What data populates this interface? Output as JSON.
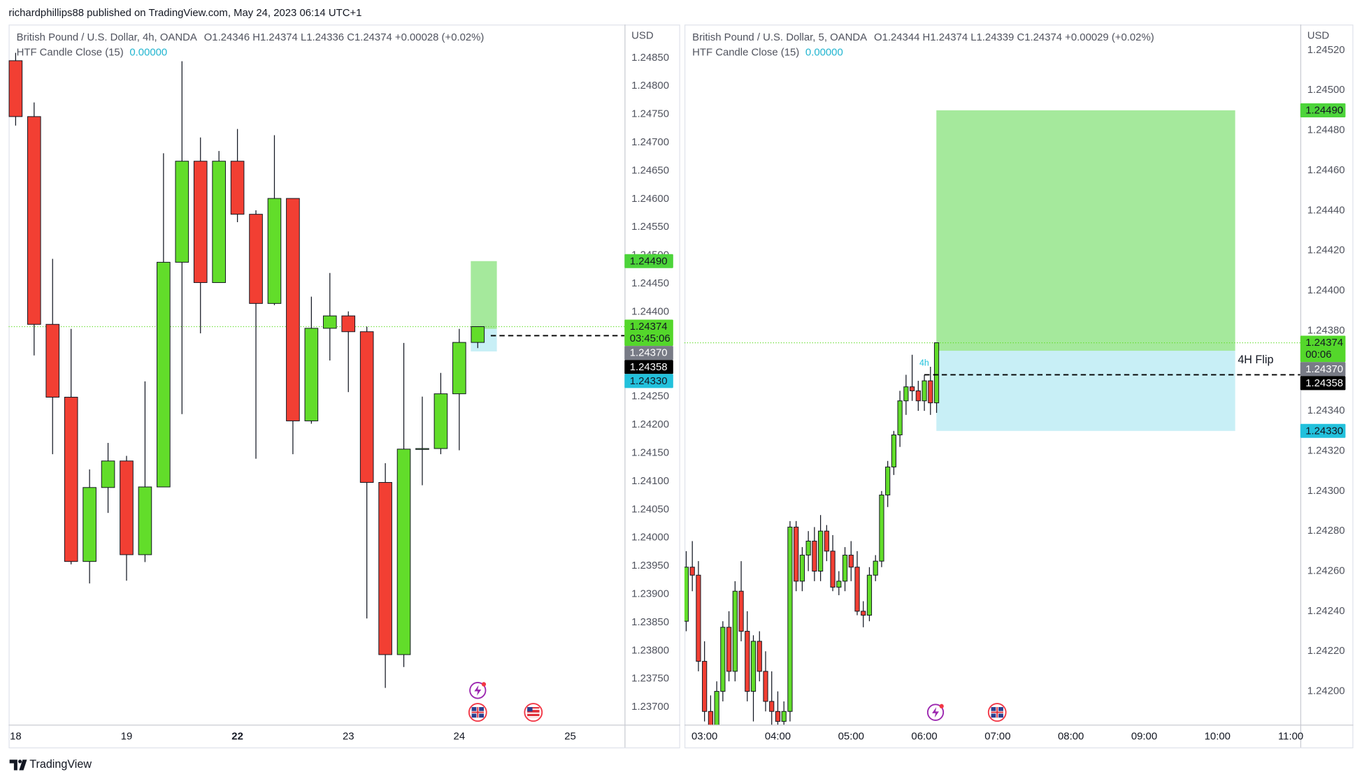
{
  "header": {
    "text": "richardphillips88 published on TradingView.com, May 24, 2023 06:14 UTC+1"
  },
  "footer": {
    "brand": "TradingView"
  },
  "chart_data": [
    {
      "type": "candlestick",
      "symbol": "British Pound / U.S. Dollar, 4h, OANDA",
      "ohlc": "O1.24346 H1.24374 L1.24336 C1.24374 +0.00028 (+0.02%)",
      "indicator": "HTF Candle Close (15)",
      "indicator_value": "0.00000",
      "currency": "USD",
      "categories": [
        "18",
        null,
        null,
        null,
        null,
        null,
        "19",
        null,
        null,
        null,
        null,
        null,
        "22",
        null,
        null,
        null,
        null,
        null,
        "23",
        null,
        null,
        null,
        null,
        null,
        "24",
        null,
        null,
        null,
        null,
        null,
        "25"
      ],
      "open": [
        1.24845,
        1.24746,
        1.24378,
        1.24249,
        1.23958,
        1.24089,
        1.24136,
        1.2397,
        1.2409,
        1.24488,
        1.24667,
        1.24452,
        1.24667,
        1.24573,
        1.24415,
        1.24601,
        1.24207,
        1.24371,
        1.24393,
        1.24365,
        1.24098,
        1.23793,
        1.24157,
        1.24158,
        1.24255,
        1.24346,
        null,
        null,
        null,
        null,
        null
      ],
      "high": [
        1.24859,
        1.24771,
        1.24494,
        1.2437,
        1.24121,
        1.24168,
        1.24145,
        1.24277,
        1.24681,
        1.24844,
        1.24709,
        1.24685,
        1.24724,
        1.2458,
        1.24713,
        1.24601,
        1.24427,
        1.24469,
        1.24401,
        1.24374,
        1.24132,
        1.24345,
        1.2425,
        1.24292,
        1.2437,
        1.24374,
        null,
        null,
        null,
        null,
        null
      ],
      "low": [
        1.2473,
        1.24323,
        1.24148,
        1.23953,
        1.23919,
        1.24044,
        1.23924,
        1.23957,
        1.2409,
        1.24219,
        1.24362,
        1.24452,
        1.24559,
        1.2414,
        1.24412,
        1.24148,
        1.24202,
        1.24314,
        1.24258,
        1.23857,
        1.23734,
        1.23771,
        1.24093,
        1.24148,
        1.24155,
        1.24336,
        null,
        null,
        null,
        null,
        null
      ],
      "close": [
        1.24746,
        1.24378,
        1.24249,
        1.23958,
        1.24089,
        1.24136,
        1.2397,
        1.2409,
        1.24488,
        1.24667,
        1.24452,
        1.24667,
        1.24573,
        1.24415,
        1.24601,
        1.24207,
        1.24371,
        1.24393,
        1.24365,
        1.24098,
        1.23793,
        1.24157,
        1.24158,
        1.24255,
        1.24346,
        1.24374,
        null,
        null,
        null,
        null,
        null
      ],
      "up_color": "#62dd2a",
      "down_color": "#f23f33",
      "ylim": [
        1.23669,
        1.24909
      ],
      "yticks": [
        {
          "value": 1.237,
          "label": "1.23700"
        },
        {
          "value": 1.2375,
          "label": "1.23750"
        },
        {
          "value": 1.238,
          "label": "1.23800"
        },
        {
          "value": 1.2385,
          "label": "1.23850"
        },
        {
          "value": 1.239,
          "label": "1.23900"
        },
        {
          "value": 1.2395,
          "label": "1.23950"
        },
        {
          "value": 1.24,
          "label": "1.24000"
        },
        {
          "value": 1.2405,
          "label": "1.24050"
        },
        {
          "value": 1.241,
          "label": "1.24100"
        },
        {
          "value": 1.2415,
          "label": "1.24150"
        },
        {
          "value": 1.242,
          "label": "1.24200"
        },
        {
          "value": 1.2425,
          "label": "1.24250"
        },
        {
          "value": 1.243,
          "label": "1.24300"
        },
        {
          "value": 1.2435,
          "label": "1.24350"
        },
        {
          "value": 1.244,
          "label": "1.24400"
        },
        {
          "value": 1.2445,
          "label": "1.24450"
        },
        {
          "value": 1.245,
          "label": "1.24500"
        },
        {
          "value": 1.2455,
          "label": "1.24550"
        },
        {
          "value": 1.246,
          "label": "1.24600"
        },
        {
          "value": 1.2465,
          "label": "1.24650"
        },
        {
          "value": 1.247,
          "label": "1.24700"
        },
        {
          "value": 1.2475,
          "label": "1.24750"
        },
        {
          "value": 1.248,
          "label": "1.24800"
        },
        {
          "value": 1.2485,
          "label": "1.24850"
        }
      ],
      "grid": false,
      "last_price": 1.24374,
      "htf_close": 1.24358,
      "position": {
        "target": 1.2449,
        "entry": 1.2437,
        "stop": 1.2433
      },
      "badges": [
        {
          "value": 1.2449,
          "label": "1.24490",
          "color": "#4cd43a"
        },
        {
          "value": 1.24374,
          "label": "1.24374",
          "color": "#54d72b",
          "sub": "03:45:06"
        },
        {
          "value": 1.2437,
          "label": "1.24370",
          "color": "#787b86"
        },
        {
          "value": 1.24358,
          "label": "1.24358",
          "color": "#000000"
        },
        {
          "value": 1.2433,
          "label": "1.24330",
          "color": "#22c1dc"
        }
      ]
    },
    {
      "type": "candlestick",
      "symbol": "British Pound / U.S. Dollar, 5, OANDA",
      "ohlc": "O1.24344 H1.24374 L1.24339 C1.24374 +0.00029 (+0.02%)",
      "indicator": "HTF Candle Close (15)",
      "indicator_value": "0.00000",
      "currency": "USD",
      "categories": [
        null,
        null,
        null,
        "03:00",
        null,
        null,
        null,
        null,
        null,
        null,
        null,
        null,
        null,
        null,
        null,
        "04:00",
        null,
        null,
        null,
        null,
        null,
        null,
        null,
        null,
        null,
        null,
        null,
        "05:00",
        null,
        null,
        null,
        null,
        null,
        null,
        null,
        null,
        null,
        null,
        null,
        "06:00",
        null,
        null,
        null,
        null,
        null,
        null,
        null,
        null,
        null,
        null,
        null,
        "07:00",
        null,
        null,
        null,
        null,
        null,
        null,
        null,
        null,
        null,
        null,
        null,
        "08:00",
        null,
        null,
        null,
        null,
        null,
        null,
        null,
        null,
        null,
        null,
        null,
        "09:00",
        null,
        null,
        null,
        null,
        null,
        null,
        null,
        null,
        null,
        null,
        null,
        "10:00",
        null,
        null,
        null,
        null,
        null,
        null,
        null,
        null,
        null,
        null,
        null,
        "11:00"
      ],
      "open": [
        1.24235,
        1.24262,
        1.24258,
        1.24215,
        1.2419,
        1.24175,
        1.242,
        1.24232,
        1.2421,
        1.2425,
        1.2423,
        1.242,
        1.24225,
        1.2421,
        1.24195,
        1.2419,
        1.24185,
        1.2419,
        1.24282,
        1.24255,
        1.24268,
        1.24275,
        1.2426,
        1.2428,
        1.2427,
        1.24252,
        1.24255,
        1.24268,
        1.24262,
        1.2424,
        1.24238,
        1.24258,
        1.24265,
        1.24298,
        1.24312,
        1.24328,
        1.24345,
        1.24352,
        1.2435,
        1.24345,
        1.24355,
        1.24344,
        null,
        null,
        null,
        null,
        null,
        null,
        null,
        null,
        null,
        null,
        null,
        null,
        null,
        null,
        null,
        null,
        null,
        null,
        null,
        null,
        null,
        null,
        null,
        null,
        null,
        null,
        null,
        null,
        null,
        null,
        null,
        null,
        null,
        null,
        null,
        null,
        null,
        null,
        null,
        null,
        null,
        null,
        null,
        null,
        null,
        null,
        null,
        null,
        null,
        null,
        null,
        null,
        null,
        null,
        null,
        null,
        null,
        null
      ],
      "high": [
        1.2427,
        1.24275,
        1.24265,
        1.24225,
        1.24198,
        1.24205,
        1.24235,
        1.2424,
        1.24255,
        1.24265,
        1.2424,
        1.24228,
        1.2423,
        1.2422,
        1.2421,
        1.242,
        1.24195,
        1.24285,
        1.24285,
        1.24272,
        1.2428,
        1.24282,
        1.24288,
        1.24283,
        1.24278,
        1.2426,
        1.24272,
        1.24275,
        1.2427,
        1.24245,
        1.24262,
        1.24268,
        1.243,
        1.24315,
        1.2433,
        1.2435,
        1.24358,
        1.24368,
        1.24355,
        1.24358,
        1.24362,
        1.24374,
        null,
        null,
        null,
        null,
        null,
        null,
        null,
        null,
        null,
        null,
        null,
        null,
        null,
        null,
        null,
        null,
        null,
        null,
        null,
        null,
        null,
        null,
        null,
        null,
        null,
        null,
        null,
        null,
        null,
        null,
        null,
        null,
        null,
        null,
        null,
        null,
        null,
        null,
        null,
        null,
        null,
        null,
        null,
        null,
        null,
        null,
        null,
        null,
        null,
        null,
        null,
        null,
        null,
        null,
        null,
        null,
        null,
        null
      ],
      "low": [
        1.2423,
        1.2425,
        1.2421,
        1.24185,
        1.2417,
        1.2417,
        1.24195,
        1.24205,
        1.24205,
        1.24225,
        1.24195,
        1.24185,
        1.24205,
        1.2419,
        1.2417,
        1.24175,
        1.24175,
        1.24185,
        1.2425,
        1.2425,
        1.2426,
        1.24255,
        1.24255,
        1.24265,
        1.2425,
        1.24248,
        1.2425,
        1.24255,
        1.24238,
        1.24232,
        1.24235,
        1.24255,
        1.24262,
        1.24292,
        1.24308,
        1.24322,
        1.24338,
        1.24345,
        1.2434,
        1.2434,
        1.24338,
        1.24339,
        null,
        null,
        null,
        null,
        null,
        null,
        null,
        null,
        null,
        null,
        null,
        null,
        null,
        null,
        null,
        null,
        null,
        null,
        null,
        null,
        null,
        null,
        null,
        null,
        null,
        null,
        null,
        null,
        null,
        null,
        null,
        null,
        null,
        null,
        null,
        null,
        null,
        null,
        null,
        null,
        null,
        null,
        null,
        null,
        null,
        null,
        null,
        null,
        null,
        null,
        null,
        null,
        null,
        null,
        null,
        null,
        null,
        null
      ],
      "close": [
        1.24262,
        1.24258,
        1.24215,
        1.2419,
        1.24175,
        1.242,
        1.24232,
        1.2421,
        1.2425,
        1.2423,
        1.242,
        1.24225,
        1.2421,
        1.24195,
        1.2419,
        1.24185,
        1.2419,
        1.24282,
        1.24255,
        1.24268,
        1.24275,
        1.2426,
        1.2428,
        1.2427,
        1.24252,
        1.24255,
        1.24268,
        1.24262,
        1.2424,
        1.24238,
        1.24258,
        1.24265,
        1.24298,
        1.24312,
        1.24328,
        1.24345,
        1.24352,
        1.2435,
        1.24345,
        1.24355,
        1.24344,
        1.24374,
        null,
        null,
        null,
        null,
        null,
        null,
        null,
        null,
        null,
        null,
        null,
        null,
        null,
        null,
        null,
        null,
        null,
        null,
        null,
        null,
        null,
        null,
        null,
        null,
        null,
        null,
        null,
        null,
        null,
        null,
        null,
        null,
        null,
        null,
        null,
        null,
        null,
        null,
        null,
        null,
        null,
        null,
        null,
        null,
        null,
        null,
        null,
        null,
        null,
        null,
        null,
        null,
        null,
        null,
        null,
        null,
        null,
        null
      ],
      "up_color": "#62dd2a",
      "down_color": "#f23f33",
      "ylim": [
        1.241834,
        1.245328
      ],
      "yticks": [
        {
          "value": 1.242,
          "label": "1.24200"
        },
        {
          "value": 1.2422,
          "label": "1.24220"
        },
        {
          "value": 1.2424,
          "label": "1.24240"
        },
        {
          "value": 1.2426,
          "label": "1.24260"
        },
        {
          "value": 1.2428,
          "label": "1.24280"
        },
        {
          "value": 1.243,
          "label": "1.24300"
        },
        {
          "value": 1.2432,
          "label": "1.24320"
        },
        {
          "value": 1.2434,
          "label": "1.24340"
        },
        {
          "value": 1.2436,
          "label": "1.24360"
        },
        {
          "value": 1.2438,
          "label": "1.24380"
        },
        {
          "value": 1.244,
          "label": "1.24400"
        },
        {
          "value": 1.2442,
          "label": "1.24420"
        },
        {
          "value": 1.2444,
          "label": "1.24440"
        },
        {
          "value": 1.2446,
          "label": "1.24460"
        },
        {
          "value": 1.2448,
          "label": "1.24480"
        },
        {
          "value": 1.245,
          "label": "1.24500"
        },
        {
          "value": 1.2452,
          "label": "1.24520"
        }
      ],
      "grid": false,
      "last_price": 1.24374,
      "htf_close": 1.24358,
      "htf_label": "4h",
      "annotation": "4H Flip",
      "position": {
        "target": 1.2449,
        "entry": 1.2437,
        "stop": 1.2433
      },
      "badges": [
        {
          "value": 1.2449,
          "label": "1.24490",
          "color": "#4cd43a"
        },
        {
          "value": 1.24374,
          "label": "1.24374",
          "color": "#54d72b",
          "sub": "00:06"
        },
        {
          "value": 1.2437,
          "label": "1.24370",
          "color": "#787b86"
        },
        {
          "value": 1.24358,
          "label": "1.24358",
          "color": "#000000"
        },
        {
          "value": 1.2433,
          "label": "1.24330",
          "color": "#22c1dc"
        }
      ]
    }
  ]
}
